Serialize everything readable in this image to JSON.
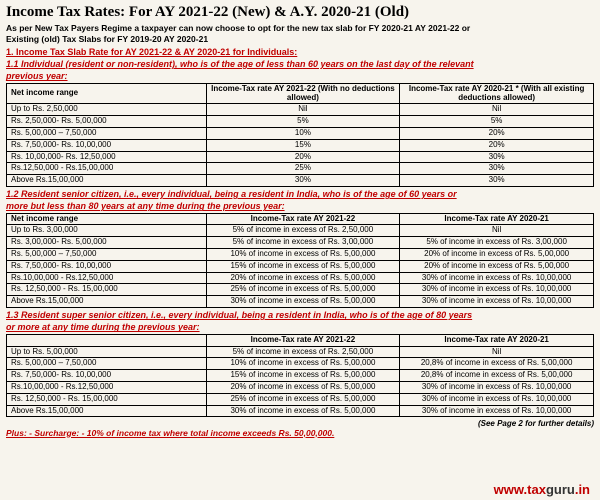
{
  "title": "Income Tax Rates: For AY 2021-22 (New) & A.Y. 2020-21 (Old)",
  "subtitle1": "As per New Tax Payers Regime a taxpayer can now choose to opt for the new tax slab for FY 2020-21 AY 2021-22 or",
  "subtitle2": "Existing (old) Tax Slabs for FY 2019-20 AY 2020-21",
  "section1": "1. Income Tax Slab Rate for AY 2021-22 & AY 2020-21 for Individuals:",
  "note11a": "1.1 Individual (resident or non-resident), who is of the age of less than 60 years on the last day of the relevant",
  "note11b": " previous year:",
  "table1": {
    "headers": [
      "Net income range",
      "Income-Tax rate AY 2021-22 (With no deductions allowed)",
      "Income-Tax rate AY 2020-21 * (With all existing deductions allowed)"
    ],
    "rows": [
      [
        "Up to Rs. 2,50,000",
        "Nil",
        "Nil"
      ],
      [
        "Rs. 2,50,000- Rs. 5,00,000",
        "5%",
        "5%"
      ],
      [
        "Rs. 5,00,000 – 7,50,000",
        "10%",
        "20%"
      ],
      [
        "Rs. 7,50,000- Rs. 10,00,000",
        "15%",
        "20%"
      ],
      [
        "Rs. 10,00,000- Rs. 12,50,000",
        "20%",
        "30%"
      ],
      [
        "Rs.12,50,000 - Rs.15,00,000",
        "25%",
        "30%"
      ],
      [
        "Above Rs.15,00,000",
        "30%",
        "30%"
      ]
    ]
  },
  "note12a": "1.2 Resident senior citizen, i.e., every individual, being a resident in India, who is of the age of 60 years or",
  "note12b": "more but less than 80 years at any time during the previous year:",
  "table2": {
    "headers": [
      "Net income range",
      "Income-Tax rate AY 2021-22",
      "Income-Tax rate AY 2020-21"
    ],
    "rows": [
      [
        "Up to Rs. 3,00,000",
        "5% of income in excess of Rs. 2,50,000",
        "Nil"
      ],
      [
        "Rs. 3,00,000- Rs. 5,00,000",
        "5% of income in excess of Rs. 3,00,000",
        "5% of income in excess of Rs. 3,00,000"
      ],
      [
        "Rs. 5,00,000 – 7,50,000",
        "10% of income in excess of Rs. 5,00,000",
        "20% of income in excess of Rs. 5,00,000"
      ],
      [
        "Rs. 7,50,000- Rs. 10,00,000",
        "15% of income in excess of Rs. 5,00,000",
        "20% of income in excess of Rs. 5,00,000"
      ],
      [
        "Rs.10,00,000 - Rs.12,50,000",
        "20% of income in excess of Rs. 5,00,000",
        "30% of income in excess of Rs. 10,00,000"
      ],
      [
        "Rs. 12,50,000 - Rs. 15,00,000",
        "25% of income in excess of Rs. 5,00,000",
        "30% of income in excess of Rs. 10,00,000"
      ],
      [
        "Above Rs.15,00,000",
        "30% of income in excess of Rs. 5,00,000",
        "30% of income in excess of Rs. 10,00,000"
      ]
    ]
  },
  "note13a": "1.3 Resident super senior citizen, i.e., every individual, being a resident in India, who is of the age of 80 years",
  "note13b": "or more at any time during the previous year:",
  "table3": {
    "headers": [
      "",
      "Income-Tax rate AY 2021-22",
      "Income-Tax rate AY 2020-21"
    ],
    "rows": [
      [
        "Up to Rs. 5,00,000",
        "5% of income in excess of Rs. 2,50,000",
        "Nil"
      ],
      [
        "Rs. 5,00,000 – 7,50,000",
        "10% of income in excess of Rs. 5,00,000",
        "20,8% of income in excess of Rs. 5,00,000"
      ],
      [
        "Rs. 7,50,000- Rs. 10,00,000",
        "15% of income in excess of Rs. 5,00,000",
        "20,8% of income in excess of Rs. 5,00,000"
      ],
      [
        "Rs.10,00,000 - Rs.12,50,000",
        "20% of income in excess of Rs. 5,00,000",
        "30% of income in excess of Rs. 10,00,000"
      ],
      [
        "Rs. 12,50,000 - Rs. 15,00,000",
        "25% of income in excess of Rs. 5,00,000",
        "30% of income in excess of Rs. 10,00,000"
      ],
      [
        "Above Rs.15,00,000",
        "30% of income in excess of Rs. 5,00,000",
        "30% of income in excess of Rs. 10,00,000"
      ]
    ]
  },
  "surcharge": "Plus: - Surcharge: - 10% of income tax where total income exceeds Rs. 50,00,000.",
  "pageref": "(See Page 2 for further details)",
  "wm1": "www.",
  "wm2": "tax",
  "wm3": "guru",
  "wm4": ".in",
  "col_widths": [
    "34%",
    "33%",
    "33%"
  ]
}
